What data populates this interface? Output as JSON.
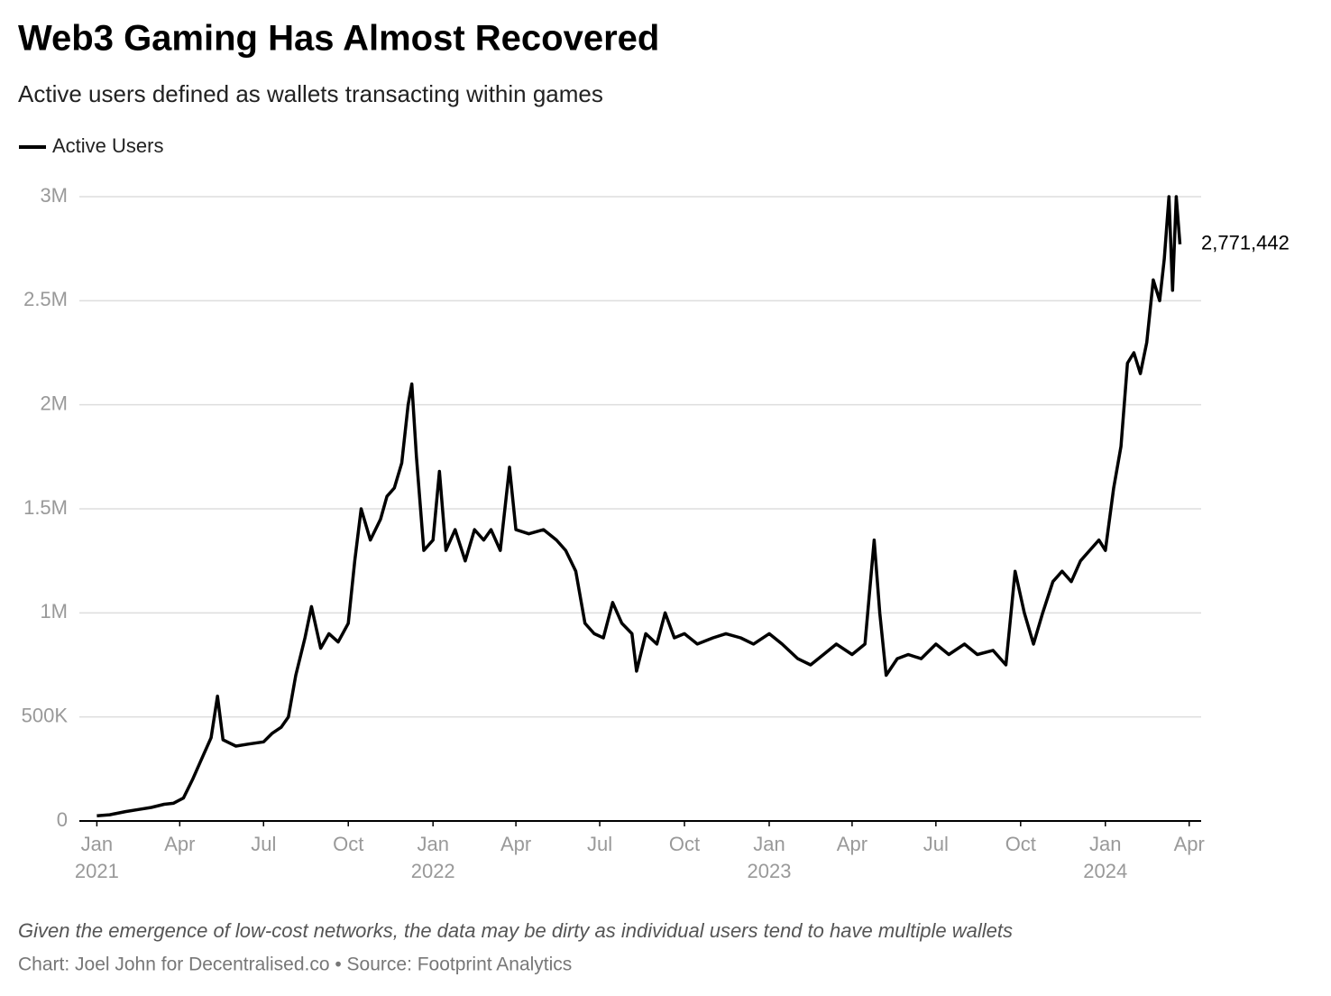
{
  "chart_data": {
    "type": "line",
    "title": "Web3 Gaming Has Almost Recovered",
    "subtitle": "Active users defined as wallets transacting within games",
    "note": "Given the emergence of low-cost networks, the data may be dirty as individual users tend to have multiple wallets",
    "source": "Chart: Joel John for Decentralised.co • Source: Footprint Analytics",
    "grid": true,
    "legend": "top-left",
    "x": [
      "2021-01-01",
      "2021-01-15",
      "2021-02-01",
      "2021-02-15",
      "2021-03-01",
      "2021-03-15",
      "2021-03-25",
      "2021-04-05",
      "2021-04-15",
      "2021-04-25",
      "2021-05-05",
      "2021-05-12",
      "2021-05-18",
      "2021-06-01",
      "2021-06-15",
      "2021-07-01",
      "2021-07-10",
      "2021-07-20",
      "2021-07-28",
      "2021-08-05",
      "2021-08-15",
      "2021-08-22",
      "2021-09-01",
      "2021-09-10",
      "2021-09-20",
      "2021-10-01",
      "2021-10-08",
      "2021-10-15",
      "2021-10-25",
      "2021-11-05",
      "2021-11-12",
      "2021-11-20",
      "2021-11-28",
      "2021-12-05",
      "2021-12-09",
      "2021-12-14",
      "2021-12-22",
      "2022-01-01",
      "2022-01-08",
      "2022-01-15",
      "2022-01-25",
      "2022-02-05",
      "2022-02-15",
      "2022-02-25",
      "2022-03-05",
      "2022-03-15",
      "2022-03-25",
      "2022-04-01",
      "2022-04-15",
      "2022-05-01",
      "2022-05-15",
      "2022-05-25",
      "2022-06-05",
      "2022-06-15",
      "2022-06-25",
      "2022-07-05",
      "2022-07-15",
      "2022-07-25",
      "2022-08-05",
      "2022-08-10",
      "2022-08-20",
      "2022-09-01",
      "2022-09-10",
      "2022-09-20",
      "2022-10-01",
      "2022-10-15",
      "2022-11-01",
      "2022-11-15",
      "2022-12-01",
      "2022-12-15",
      "2023-01-01",
      "2023-01-15",
      "2023-02-01",
      "2023-02-15",
      "2023-03-01",
      "2023-03-15",
      "2023-04-01",
      "2023-04-15",
      "2023-04-25",
      "2023-05-01",
      "2023-05-08",
      "2023-05-20",
      "2023-06-01",
      "2023-06-15",
      "2023-07-01",
      "2023-07-15",
      "2023-08-01",
      "2023-08-15",
      "2023-09-01",
      "2023-09-15",
      "2023-09-25",
      "2023-10-05",
      "2023-10-15",
      "2023-10-25",
      "2023-11-05",
      "2023-11-15",
      "2023-11-25",
      "2023-12-05",
      "2023-12-15",
      "2023-12-25",
      "2024-01-01",
      "2024-01-10",
      "2024-01-18",
      "2024-01-25",
      "2024-02-01",
      "2024-02-08",
      "2024-02-15",
      "2024-02-22",
      "2024-02-29",
      "2024-03-05",
      "2024-03-10",
      "2024-03-14",
      "2024-03-18",
      "2024-03-22"
    ],
    "series": [
      {
        "name": "Active Users",
        "color": "#000000",
        "values": [
          25000,
          30000,
          45000,
          55000,
          65000,
          80000,
          85000,
          110000,
          200000,
          300000,
          400000,
          600000,
          390000,
          360000,
          370000,
          380000,
          420000,
          450000,
          500000,
          700000,
          880000,
          1030000,
          830000,
          900000,
          860000,
          950000,
          1250000,
          1500000,
          1350000,
          1450000,
          1560000,
          1600000,
          1720000,
          2000000,
          2100000,
          1750000,
          1300000,
          1350000,
          1680000,
          1300000,
          1400000,
          1250000,
          1400000,
          1350000,
          1400000,
          1300000,
          1700000,
          1400000,
          1380000,
          1400000,
          1350000,
          1300000,
          1200000,
          950000,
          900000,
          880000,
          1050000,
          950000,
          900000,
          720000,
          900000,
          850000,
          1000000,
          880000,
          900000,
          850000,
          880000,
          900000,
          880000,
          850000,
          900000,
          850000,
          780000,
          750000,
          800000,
          850000,
          800000,
          850000,
          1350000,
          1000000,
          700000,
          780000,
          800000,
          780000,
          850000,
          800000,
          850000,
          800000,
          820000,
          750000,
          1200000,
          1000000,
          850000,
          1000000,
          1150000,
          1200000,
          1150000,
          1250000,
          1300000,
          1350000,
          1300000,
          1600000,
          1800000,
          2200000,
          2250000,
          2150000,
          2300000,
          2600000,
          2500000,
          2700000,
          3000000,
          2550000,
          3000000,
          2771442
        ],
        "value_labels": [
          null,
          null,
          null,
          null,
          null,
          null,
          null,
          null,
          null,
          null,
          null,
          null,
          null,
          null,
          null,
          null,
          null,
          null,
          null,
          null,
          null,
          null,
          null,
          null,
          null,
          null,
          null,
          null,
          null,
          null,
          null,
          null,
          null,
          null,
          null,
          null,
          null,
          null,
          null,
          null,
          null,
          null,
          null,
          null,
          null,
          null,
          null,
          null,
          null,
          null,
          null,
          null,
          null,
          null,
          null,
          null,
          null,
          null,
          null,
          null,
          null,
          null,
          null,
          null,
          null,
          null,
          null,
          null,
          null,
          null,
          null,
          null,
          null,
          null,
          null,
          null,
          null,
          null,
          null,
          null,
          null,
          null,
          null,
          null,
          null,
          null,
          null,
          null,
          null,
          null,
          null,
          null,
          null,
          null,
          null,
          null,
          null,
          null,
          null,
          null,
          null,
          null,
          null,
          null,
          null,
          null,
          null,
          null,
          null,
          null,
          null,
          null,
          null,
          "2,771,442"
        ]
      }
    ],
    "xlim": [
      "2020-12-13",
      "2024-04-14"
    ],
    "xticks": [
      {
        "value": "2021-01-01",
        "label": "Jan",
        "year": "2021"
      },
      {
        "value": "2021-04-01",
        "label": "Apr"
      },
      {
        "value": "2021-07-01",
        "label": "Jul"
      },
      {
        "value": "2021-10-01",
        "label": "Oct"
      },
      {
        "value": "2022-01-01",
        "label": "Jan",
        "year": "2022"
      },
      {
        "value": "2022-04-01",
        "label": "Apr"
      },
      {
        "value": "2022-07-01",
        "label": "Jul"
      },
      {
        "value": "2022-10-01",
        "label": "Oct"
      },
      {
        "value": "2023-01-01",
        "label": "Jan",
        "year": "2023"
      },
      {
        "value": "2023-04-01",
        "label": "Apr"
      },
      {
        "value": "2023-07-01",
        "label": "Jul"
      },
      {
        "value": "2023-10-01",
        "label": "Oct"
      },
      {
        "value": "2024-01-01",
        "label": "Jan",
        "year": "2024"
      },
      {
        "value": "2024-04-01",
        "label": "Apr"
      }
    ],
    "ylim": [
      0,
      3000000
    ],
    "yticks": [
      0,
      {
        "value": 500000,
        "label": "500K"
      },
      {
        "value": 1000000,
        "label": "1M"
      },
      {
        "value": 1500000,
        "label": "1.5M"
      },
      {
        "value": 2000000,
        "label": "2M"
      },
      {
        "value": 2500000,
        "label": "2.5M"
      },
      {
        "value": 3000000,
        "label": "3M"
      }
    ]
  }
}
